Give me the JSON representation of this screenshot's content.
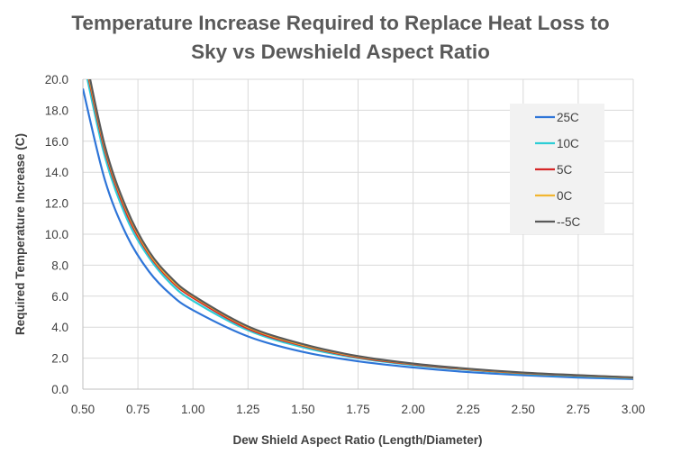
{
  "chart_data": {
    "type": "line",
    "title_line1": "Temperature Increase Required to Replace Heat Loss to",
    "title_line2": "Sky vs Dewshield Aspect Ratio",
    "xlabel": "Dew Shield Aspect Ratio (Length/Diameter)",
    "ylabel": "Required Temperature Increase (C)",
    "xlim": [
      0.5,
      3.0
    ],
    "ylim": [
      0.0,
      20.0
    ],
    "x_ticks": [
      "0.50",
      "0.75",
      "1.00",
      "1.25",
      "1.50",
      "1.75",
      "2.00",
      "2.25",
      "2.50",
      "2.75",
      "3.00"
    ],
    "y_ticks": [
      "0.0",
      "2.0",
      "4.0",
      "6.0",
      "8.0",
      "10.0",
      "12.0",
      "14.0",
      "16.0",
      "18.0",
      "20.0"
    ],
    "grid": true,
    "legend_position": "top-right",
    "x": [
      0.5,
      0.6,
      0.7,
      0.8,
      0.9,
      1.0,
      1.25,
      1.5,
      1.75,
      2.0,
      2.25,
      2.5,
      2.75,
      3.0
    ],
    "series": [
      {
        "name": "25C",
        "color": "#2E75D8",
        "values": [
          19.4,
          13.5,
          9.9,
          7.6,
          6.1,
          5.1,
          3.4,
          2.4,
          1.8,
          1.4,
          1.1,
          0.9,
          0.75,
          0.65
        ]
      },
      {
        "name": "10C",
        "color": "#2DCDD6",
        "values": [
          21.4,
          15.0,
          11.0,
          8.5,
          6.8,
          5.7,
          3.8,
          2.7,
          2.0,
          1.55,
          1.25,
          1.0,
          0.85,
          0.72
        ]
      },
      {
        "name": "5C",
        "color": "#D62728",
        "values": [
          21.9,
          15.4,
          11.3,
          8.7,
          7.0,
          5.9,
          3.9,
          2.8,
          2.05,
          1.6,
          1.28,
          1.03,
          0.88,
          0.74
        ]
      },
      {
        "name": "0C",
        "color": "#F2B630",
        "values": [
          22.1,
          15.6,
          11.5,
          8.8,
          7.1,
          6.0,
          4.0,
          2.85,
          2.1,
          1.63,
          1.3,
          1.05,
          0.89,
          0.75
        ]
      },
      {
        "name": "--5C",
        "color": "#595959",
        "values": [
          22.3,
          15.7,
          11.6,
          8.9,
          7.2,
          6.05,
          4.05,
          2.9,
          2.13,
          1.65,
          1.32,
          1.07,
          0.9,
          0.76
        ]
      }
    ]
  }
}
